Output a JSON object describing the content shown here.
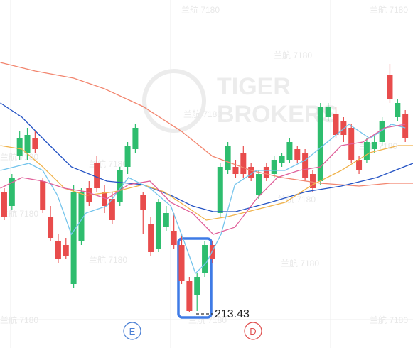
{
  "chart_data": {
    "type": "candlestick",
    "up_color": "#2ebd6e",
    "down_color": "#e84c4c",
    "ylim": [
      208.43,
      257.43
    ],
    "open": [
      230.43,
      228.43,
      235.43,
      235.93,
      237.93,
      231.93,
      226.93,
      223.43,
      222.93,
      217.43,
      223.43,
      230.93,
      234.43,
      230.43,
      229.43,
      228.93,
      233.93,
      236.43,
      229.93,
      225.93,
      222.43,
      225.43,
      224.93,
      222.93,
      217.93,
      215.93,
      218.93,
      222.93,
      227.43,
      233.43,
      233.93,
      235.93,
      233.93,
      229.93,
      233.93,
      232.93,
      234.43,
      234.93,
      236.43,
      235.93,
      232.93,
      231.93,
      240.93,
      241.43,
      240.43,
      239.43,
      234.93,
      234.93,
      236.43,
      237.43,
      246.93,
      240.93,
      241.43
    ],
    "high": [
      230.93,
      232.93,
      238.93,
      239.43,
      238.93,
      232.43,
      228.43,
      224.43,
      223.93,
      231.43,
      230.93,
      231.93,
      235.43,
      231.43,
      230.43,
      233.93,
      237.43,
      239.93,
      230.43,
      226.93,
      229.43,
      228.43,
      227.43,
      224.43,
      218.43,
      218.93,
      223.43,
      223.43,
      234.43,
      237.43,
      234.93,
      236.93,
      234.43,
      233.43,
      234.43,
      235.43,
      235.93,
      237.93,
      236.93,
      236.43,
      233.43,
      242.93,
      242.93,
      242.43,
      240.93,
      239.93,
      235.43,
      237.93,
      238.43,
      240.93,
      248.43,
      243.43,
      241.93
    ],
    "low": [
      226.43,
      227.93,
      234.93,
      234.93,
      235.93,
      227.43,
      223.43,
      220.43,
      220.93,
      216.93,
      222.93,
      228.43,
      230.43,
      227.43,
      225.93,
      228.43,
      232.93,
      235.93,
      224.43,
      221.43,
      221.93,
      224.93,
      222.43,
      217.43,
      213.43,
      213.63,
      218.43,
      220.43,
      226.93,
      232.93,
      232.43,
      232.43,
      231.93,
      229.43,
      231.93,
      232.43,
      233.93,
      234.43,
      234.43,
      231.93,
      230.43,
      231.43,
      240.43,
      237.93,
      237.43,
      234.43,
      232.93,
      234.43,
      235.93,
      236.93,
      242.93,
      240.43,
      237.43
    ],
    "close": [
      226.93,
      232.43,
      237.93,
      238.43,
      236.43,
      227.93,
      223.93,
      220.93,
      221.43,
      230.43,
      230.43,
      228.93,
      230.93,
      228.43,
      226.43,
      233.43,
      236.93,
      239.43,
      227.93,
      221.93,
      228.93,
      227.43,
      222.93,
      217.93,
      213.63,
      218.43,
      222.93,
      220.93,
      233.93,
      236.93,
      232.93,
      232.93,
      232.43,
      232.93,
      232.43,
      234.93,
      235.43,
      237.43,
      234.93,
      232.43,
      230.93,
      242.43,
      242.43,
      238.43,
      238.43,
      234.93,
      233.43,
      237.43,
      237.43,
      240.43,
      243.43,
      242.93,
      237.93
    ],
    "lines": [
      {
        "color": "#f2856e",
        "x": [
          -0.5,
          4,
          9,
          13,
          18,
          23,
          27,
          32,
          36,
          41,
          46,
          50,
          53
        ],
        "values": [
          248.63,
          247.43,
          246.43,
          244.93,
          242.43,
          238.93,
          235.43,
          233.43,
          232.43,
          231.63,
          231.23,
          231.63,
          231.63
        ]
      },
      {
        "color": "#2453c4",
        "x": [
          -0.5,
          2.3,
          5,
          8.7,
          13.3,
          18,
          21.6,
          24.4,
          27.1,
          30,
          34.5,
          39.1,
          43.7,
          48.3,
          53
        ],
        "values": [
          242.93,
          240.93,
          237.93,
          233.93,
          231.93,
          231.43,
          229.93,
          228.43,
          227.63,
          227.63,
          228.93,
          230.43,
          231.23,
          232.43,
          234.43
        ]
      },
      {
        "color": "#f0b24a",
        "x": [
          -0.5,
          2.3,
          5,
          7.8,
          10.6,
          14.3,
          18,
          20.7,
          23.5,
          26.2,
          29,
          32.7,
          36.4,
          40,
          43.7,
          47.4,
          51.1,
          53
        ],
        "values": [
          236.93,
          236.43,
          233.93,
          230.93,
          229.93,
          230.43,
          231.43,
          230.43,
          228.43,
          226.43,
          226.93,
          227.93,
          228.93,
          231.43,
          233.43,
          235.93,
          236.93,
          236.93
        ]
      },
      {
        "color": "#74c4ec",
        "x": [
          -0.5,
          3.2,
          5,
          6.9,
          8.7,
          10.6,
          13.3,
          16.1,
          18.9,
          21.6,
          23.5,
          24.8,
          26.2,
          28.1,
          29.9,
          32.7,
          36.4,
          39.1,
          41.9,
          44.7,
          47.4,
          50.2,
          52
        ],
        "values": [
          233.43,
          234.43,
          233.43,
          229.93,
          224.43,
          227.43,
          228.43,
          232.43,
          230.93,
          228.43,
          222.93,
          218.93,
          220.43,
          224.43,
          231.43,
          233.43,
          233.43,
          234.93,
          237.43,
          239.93,
          237.93,
          239.93,
          239.43
        ]
      },
      {
        "color": "#e0609a",
        "x": [
          -0.5,
          2.3,
          5,
          7.8,
          10.6,
          13.3,
          16.1,
          18.9,
          21.6,
          24.4,
          27.1,
          29.9,
          32.7,
          35.4,
          38.2,
          41,
          43.7,
          46.5,
          49.3,
          52
        ],
        "values": [
          230.93,
          232.43,
          231.93,
          230.93,
          230.43,
          229.43,
          231.43,
          231.93,
          228.93,
          227.43,
          224.43,
          225.43,
          229.43,
          232.43,
          233.43,
          233.93,
          236.93,
          237.43,
          239.43,
          239.93
        ]
      }
    ],
    "low_value": 213.43,
    "events": [
      {
        "label": "E",
        "color": "#4a7fd4"
      },
      {
        "label": "D",
        "color": "#e0504f"
      }
    ],
    "watermark": [
      "TIGER",
      "BROKERS"
    ],
    "watermark_small": "兰航 7180"
  }
}
